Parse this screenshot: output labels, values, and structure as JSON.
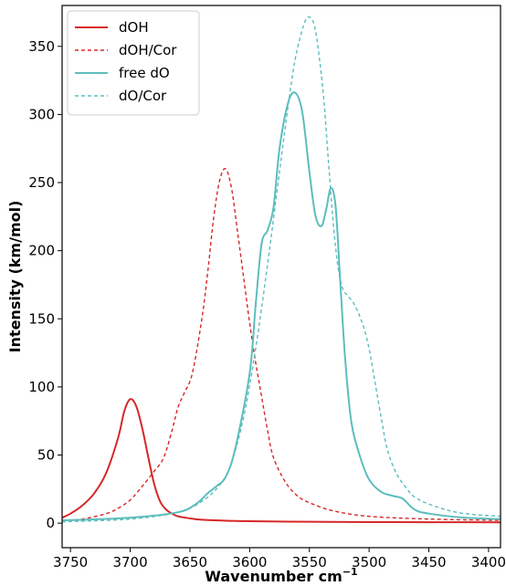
{
  "chart_data": {
    "type": "line",
    "xlabel": "Wavenumber cm",
    "xlabel_sup": "−1",
    "ylabel": "Intensity (km/mol)",
    "xlim": [
      3757,
      3390
    ],
    "ylim": [
      -18,
      380
    ],
    "x_inverted": true,
    "xticks": [
      3750,
      3700,
      3650,
      3600,
      3550,
      3500,
      3450,
      3400
    ],
    "yticks": [
      0,
      50,
      100,
      150,
      200,
      250,
      300,
      350
    ],
    "grid": false,
    "legend_position": "top-left",
    "series": [
      {
        "name": "dOH",
        "color": "#d62728",
        "dash": "solid",
        "x": [
          3757,
          3750,
          3740,
          3730,
          3720,
          3710,
          3705,
          3700,
          3695,
          3690,
          3685,
          3680,
          3675,
          3670,
          3665,
          3660,
          3650,
          3640,
          3620,
          3600,
          3550,
          3500,
          3450,
          3390
        ],
        "y": [
          4,
          7,
          13,
          22,
          37,
          63,
          82,
          91,
          86,
          70,
          49,
          29,
          16,
          10,
          7,
          5,
          3.5,
          2.5,
          1.8,
          1.4,
          1.0,
          0.8,
          0.7,
          0.6
        ]
      },
      {
        "name": "dOH/Cor",
        "color": "#d62728",
        "dash": "dashed",
        "x": [
          3757,
          3740,
          3720,
          3710,
          3700,
          3690,
          3680,
          3672,
          3665,
          3660,
          3655,
          3648,
          3640,
          3635,
          3630,
          3625,
          3620,
          3615,
          3610,
          3605,
          3600,
          3595,
          3590,
          3585,
          3580,
          3570,
          3560,
          3550,
          3530,
          3500,
          3450,
          3390
        ],
        "y": [
          2,
          3,
          7,
          11,
          17,
          27,
          38,
          48,
          68,
          85,
          95,
          110,
          150,
          185,
          225,
          252,
          260,
          245,
          213,
          180,
          147,
          118,
          93,
          68,
          48,
          30,
          20,
          15,
          9,
          5,
          3,
          2
        ]
      },
      {
        "name": "free dO",
        "color": "#5dbdbd",
        "dash": "solid",
        "x": [
          3757,
          3700,
          3660,
          3645,
          3635,
          3628,
          3620,
          3612,
          3600,
          3595,
          3590,
          3585,
          3580,
          3575,
          3568,
          3562,
          3556,
          3550,
          3545,
          3540,
          3536,
          3532,
          3528,
          3524,
          3520,
          3515,
          3508,
          3500,
          3490,
          3480,
          3472,
          3462,
          3450,
          3420,
          3390
        ],
        "y": [
          2,
          4,
          8,
          14,
          22,
          27,
          34,
          55,
          110,
          160,
          205,
          215,
          232,
          275,
          308,
          316,
          302,
          258,
          226,
          218,
          230,
          246,
          232,
          175,
          120,
          75,
          50,
          32,
          23,
          20,
          18,
          10,
          7,
          4,
          3
        ]
      },
      {
        "name": "dO/Cor",
        "color": "#5dbdbd",
        "dash": "dashed",
        "x": [
          3757,
          3700,
          3660,
          3640,
          3625,
          3615,
          3605,
          3595,
          3585,
          3575,
          3568,
          3562,
          3556,
          3552,
          3548,
          3545,
          3542,
          3538,
          3534,
          3530,
          3526,
          3522,
          3518,
          3512,
          3505,
          3500,
          3495,
          3490,
          3485,
          3478,
          3470,
          3460,
          3440,
          3420,
          3390
        ],
        "y": [
          1,
          3,
          8,
          16,
          28,
          45,
          78,
          128,
          190,
          258,
          305,
          340,
          362,
          371,
          370,
          362,
          344,
          312,
          265,
          220,
          188,
          172,
          167,
          160,
          145,
          128,
          103,
          78,
          55,
          38,
          27,
          18,
          11,
          7,
          5
        ]
      }
    ]
  }
}
